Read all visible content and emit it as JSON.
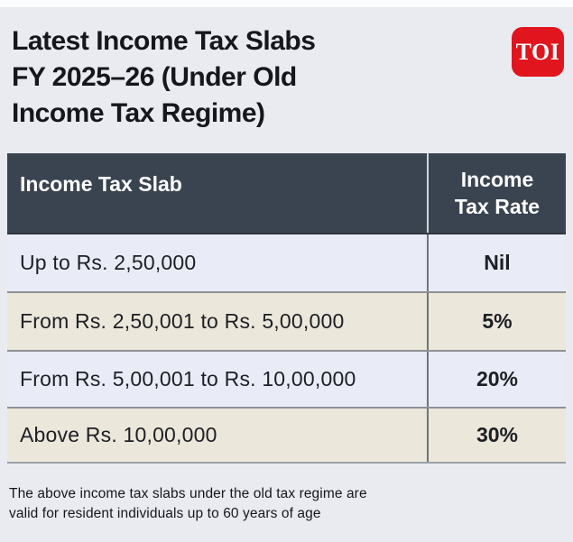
{
  "title": {
    "lines": [
      "Latest Income Tax Slabs",
      "FY 2025–26 (Under Old",
      "Income Tax Regime)"
    ]
  },
  "logo": {
    "text": "TOI",
    "brand_color": "#e0151d"
  },
  "table": {
    "header": {
      "slab_column": "Income Tax Slab",
      "rate_column": "Income Tax Rate"
    },
    "rows": [
      {
        "slab": "Up to Rs. 2,50,000",
        "rate": "Nil"
      },
      {
        "slab": "From Rs. 2,50,001 to Rs. 5,00,000",
        "rate": "5%"
      },
      {
        "slab": "From Rs. 5,00,001 to Rs. 10,00,000",
        "rate": "20%"
      },
      {
        "slab": "Above Rs. 10,00,000",
        "rate": "30%"
      }
    ]
  },
  "footer": {
    "lines": [
      "The above income tax slabs under the old tax regime are",
      "valid for resident individuals up to 60 years of age"
    ]
  },
  "colors": {
    "page_background": "#e9ebf0",
    "table_header_background": "#3a4450",
    "row_alt_lavender": "#e9ecf6",
    "row_alt_beige": "#ece7db",
    "divider_gray": "#8e9197"
  },
  "chart_data": {
    "type": "table",
    "title": "Latest Income Tax Slabs FY 2025–26 (Under Old Income Tax Regime)",
    "columns": [
      "Income Tax Slab",
      "Income Tax Rate"
    ],
    "rows": [
      [
        "Up to Rs. 2,50,000",
        "Nil"
      ],
      [
        "From Rs. 2,50,001 to Rs. 5,00,000",
        "5%"
      ],
      [
        "From Rs. 5,00,001 to Rs. 10,00,000",
        "20%"
      ],
      [
        "Above Rs. 10,00,000",
        "30%"
      ]
    ],
    "note": "The above income tax slabs under the old tax regime are valid for resident individuals up to 60 years of age"
  }
}
